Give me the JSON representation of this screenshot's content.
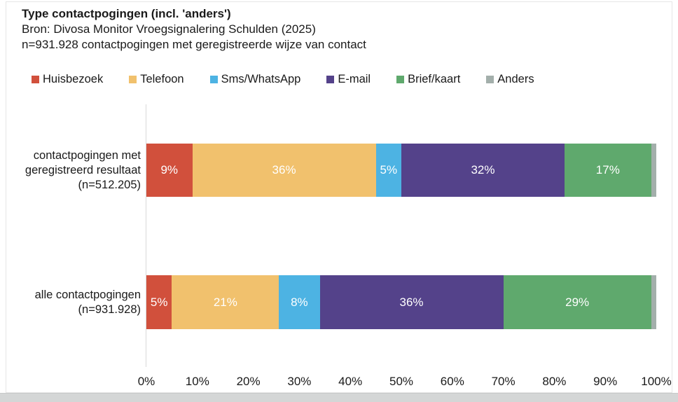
{
  "header": {
    "title": "Type contactpogingen (incl. 'anders')",
    "source_line": "Bron: Divosa Monitor Vroegsignalering Schulden (2025)",
    "n_line": "n=931.928 contactpogingen met geregistreerde wijze van contact"
  },
  "chart_data": {
    "type": "bar",
    "orientation": "horizontal",
    "stacked": true,
    "unit": "percent",
    "xlim": [
      0,
      100
    ],
    "x_ticks": [
      "0%",
      "10%",
      "20%",
      "30%",
      "40%",
      "50%",
      "60%",
      "70%",
      "80%",
      "90%",
      "100%"
    ],
    "grid": false,
    "legend_position": "top",
    "bar_label_color": "#ffffff",
    "categories": [
      {
        "lines": [
          "contactpogingen met",
          "geregistreerd resultaat",
          "(n=512.205)"
        ]
      },
      {
        "lines": [
          "alle contactpogingen",
          "(n=931.928)"
        ]
      }
    ],
    "series": [
      {
        "name": "Huisbezoek",
        "color": "#d1503c",
        "values": [
          9,
          5
        ],
        "labels": [
          "9%",
          "5%"
        ]
      },
      {
        "name": "Telefoon",
        "color": "#f1c16d",
        "values": [
          36,
          21
        ],
        "labels": [
          "36%",
          "21%"
        ]
      },
      {
        "name": "Sms/WhatsApp",
        "color": "#4db3e3",
        "values": [
          5,
          8
        ],
        "labels": [
          "5%",
          "8%"
        ]
      },
      {
        "name": "E-mail",
        "color": "#54428a",
        "values": [
          32,
          36
        ],
        "labels": [
          "32%",
          "36%"
        ]
      },
      {
        "name": "Brief/kaart",
        "color": "#5fa96d",
        "values": [
          17,
          29
        ],
        "labels": [
          "17%",
          "29%"
        ]
      },
      {
        "name": "Anders",
        "color": "#a3afab",
        "values": [
          1,
          1
        ],
        "labels": [
          "",
          ""
        ]
      }
    ]
  }
}
